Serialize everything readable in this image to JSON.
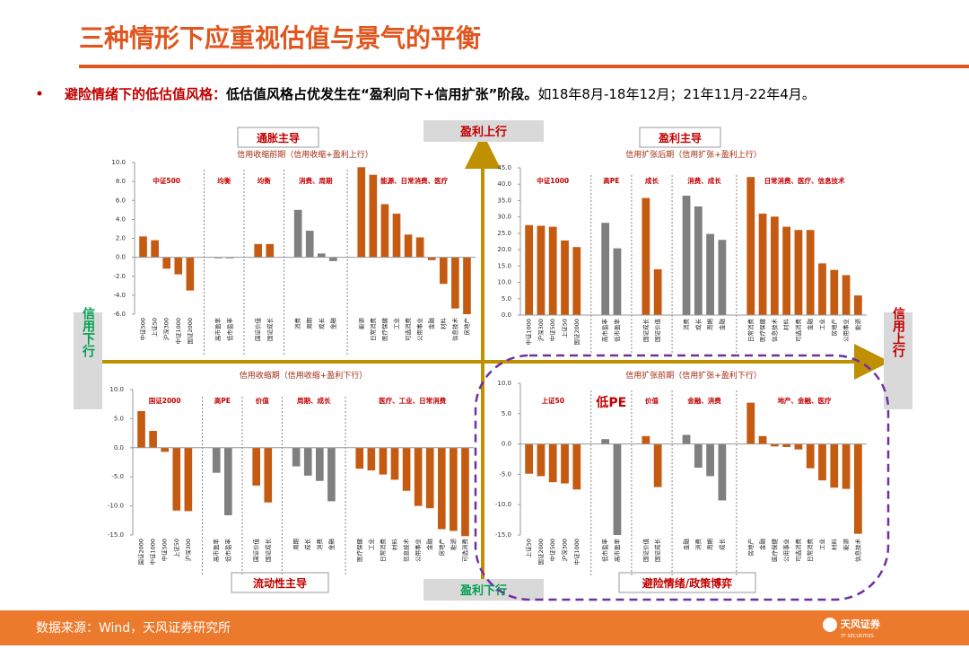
{
  "title": "三种情形下应重视估值与景气的平衡",
  "bullet": {
    "lead": "避险情绪下的低估值风格：",
    "bold": "低估值风格占优发生在“盈利向下+信用扩张”阶段。",
    "rest": "如18年8月-18年12月；21年11月-22年4月。"
  },
  "quadrants": {
    "top_left": "通胀主导",
    "top_right": "盈利主导",
    "bottom_left": "流动性主导",
    "bottom_right": "避险情绪/政策博弈"
  },
  "axes": {
    "up": "盈利上行",
    "down": "盈利下行",
    "left": "信用下行",
    "right": "信用上行"
  },
  "footer": {
    "source": "数据来源：Wind，天风证券研究所",
    "logo": "天风证券",
    "logo_sub": "TF SECURITIES"
  },
  "chart_data": [
    {
      "type": "bar",
      "subtitle": "信用收缩前期（信用收缩+盈利上行）",
      "ylim": [
        -6,
        10
      ],
      "yticks": [
        {
          "value": 10,
          "label": "10.0"
        },
        {
          "value": 8,
          "label": "8.0"
        },
        {
          "value": 6,
          "label": "6.0"
        },
        {
          "value": 4,
          "label": "4.0"
        },
        {
          "value": 2,
          "label": "2.0"
        },
        {
          "value": 0,
          "label": "0.0"
        },
        {
          "value": -2,
          "label": "-2.0"
        },
        {
          "value": -4,
          "label": "-4.0"
        },
        {
          "value": -6,
          "label": "-6.0"
        }
      ],
      "groups": [
        {
          "label": "中证500",
          "color": "#c55a11",
          "categories": [
            "中证500",
            "上证50",
            "沪深300",
            "中证1000",
            "国证2000"
          ],
          "values": [
            2.2,
            1.8,
            -1.2,
            -1.8,
            -3.5
          ]
        },
        {
          "label": "均衡",
          "color": "#7f7f7f",
          "categories": [
            "高市盈率",
            "低市盈率"
          ],
          "values": [
            -0.1,
            -0.1
          ]
        },
        {
          "label": "均衡",
          "color": "#c55a11",
          "categories": [
            "国证价值",
            "国证成长"
          ],
          "values": [
            1.4,
            1.4
          ]
        },
        {
          "label": "消费、周期",
          "color": "#7f7f7f",
          "categories": [
            "消费",
            "周期",
            "成长",
            "金融"
          ],
          "values": [
            5.0,
            2.8,
            0.4,
            -0.4
          ]
        },
        {
          "label": "能源、日常消费、医疗",
          "color": "#c55a11",
          "categories": [
            "能源",
            "日常消费",
            "医疗保健",
            "工业",
            "可选消费",
            "公用事业",
            "金融",
            "材料",
            "信息技术",
            "房地产"
          ],
          "values": [
            9.5,
            8.7,
            5.6,
            4.6,
            2.4,
            2.1,
            -0.3,
            -2.8,
            -5.4,
            -6.0
          ]
        }
      ]
    },
    {
      "type": "bar",
      "subtitle": "信用扩张后期（信用扩张+盈利上行）",
      "ylim": [
        0,
        45
      ],
      "yticks": [
        {
          "value": 45,
          "label": "45.0"
        },
        {
          "value": 40,
          "label": "40.0"
        },
        {
          "value": 35,
          "label": "35.0"
        },
        {
          "value": 30,
          "label": "30.0"
        },
        {
          "value": 25,
          "label": "25.0"
        },
        {
          "value": 20,
          "label": "20.0"
        },
        {
          "value": 15,
          "label": "15.0"
        },
        {
          "value": 10,
          "label": "10.0"
        },
        {
          "value": 5,
          "label": "5.0"
        },
        {
          "value": 0,
          "label": "0.0"
        }
      ],
      "groups": [
        {
          "label": "中证1000",
          "color": "#c55a11",
          "categories": [
            "中证1000",
            "沪深300",
            "中证500",
            "上证50",
            "国证2000"
          ],
          "values": [
            27.5,
            27.3,
            27.0,
            22.8,
            20.8
          ]
        },
        {
          "label": "高PE",
          "color": "#7f7f7f",
          "categories": [
            "高市盈率",
            "低市盈率"
          ],
          "values": [
            28.2,
            20.4
          ]
        },
        {
          "label": "成长",
          "color": "#c55a11",
          "categories": [
            "国证成长",
            "国证价值"
          ],
          "values": [
            35.8,
            14.0
          ]
        },
        {
          "label": "消费、成长",
          "color": "#7f7f7f",
          "categories": [
            "消费",
            "成长",
            "周期",
            "金融"
          ],
          "values": [
            36.5,
            33.2,
            24.8,
            23.0
          ]
        },
        {
          "label": "日常消费、医疗、信息技术",
          "color": "#c55a11",
          "categories": [
            "日常消费",
            "医疗保健",
            "信息技术",
            "材料",
            "可选消费",
            "金融",
            "工业",
            "房地产",
            "公用事业",
            "能源"
          ],
          "values": [
            42.2,
            31.0,
            30.1,
            27.0,
            26.0,
            26.0,
            15.8,
            13.8,
            12.2,
            6.0
          ]
        }
      ]
    },
    {
      "type": "bar",
      "subtitle": "信用收缩期（信用收缩+盈利下行）",
      "ylim": [
        -15,
        10
      ],
      "yticks": [
        {
          "value": 10,
          "label": "10.0"
        },
        {
          "value": 5,
          "label": "5.0"
        },
        {
          "value": 0,
          "label": "0.0"
        },
        {
          "value": -5,
          "label": "-5.0"
        },
        {
          "value": -10,
          "label": "-10.0"
        },
        {
          "value": -15,
          "label": "-15.0"
        }
      ],
      "groups": [
        {
          "label": "国证2000",
          "color": "#c55a11",
          "categories": [
            "国证2000",
            "中证1000",
            "中证500",
            "上证50",
            "沪深300"
          ],
          "values": [
            6.3,
            2.9,
            -0.7,
            -10.8,
            -10.9
          ]
        },
        {
          "label": "高PE",
          "color": "#7f7f7f",
          "categories": [
            "高市盈率",
            "低市盈率"
          ],
          "values": [
            -4.3,
            -11.6
          ]
        },
        {
          "label": "价值",
          "color": "#c55a11",
          "categories": [
            "国证价值",
            "国证成长"
          ],
          "values": [
            -6.5,
            -9.4
          ]
        },
        {
          "label": "周期、成长",
          "color": "#7f7f7f",
          "categories": [
            "周期",
            "成长",
            "消费",
            "金融"
          ],
          "values": [
            -3.2,
            -4.8,
            -5.7,
            -9.2
          ]
        },
        {
          "label": "医疗、工业、日常消费",
          "color": "#c55a11",
          "categories": [
            "医疗保健",
            "工业",
            "日常消费",
            "材料",
            "信息技术",
            "公用事业",
            "金融",
            "房地产",
            "能源",
            "可选消费"
          ],
          "values": [
            -3.6,
            -3.9,
            -4.6,
            -5.5,
            -7.4,
            -10.0,
            -10.4,
            -14.0,
            -14.3,
            -15.2
          ]
        }
      ]
    },
    {
      "type": "bar",
      "subtitle": "信用扩张前期（信用扩张+盈利下行）",
      "ylim": [
        -15,
        10
      ],
      "yticks": [
        {
          "value": 10,
          "label": "10.0"
        },
        {
          "value": 5,
          "label": "5.0"
        },
        {
          "value": 0,
          "label": "0.0"
        },
        {
          "value": -5,
          "label": "-5.0"
        },
        {
          "value": -10,
          "label": "-10.0"
        },
        {
          "value": -15,
          "label": "-15.0"
        }
      ],
      "groups": [
        {
          "label": "上证50",
          "color": "#c55a11",
          "categories": [
            "上证50",
            "国证2000",
            "中证500",
            "沪深300",
            "中证1000"
          ],
          "values": [
            -4.9,
            -5.3,
            -6.3,
            -6.5,
            -7.5
          ]
        },
        {
          "label": "低PE",
          "color": "#7f7f7f",
          "categories": [
            "低市盈率",
            "高市盈率"
          ],
          "values": [
            0.8,
            -15.0
          ]
        },
        {
          "label": "价值",
          "color": "#c55a11",
          "categories": [
            "国证价值",
            "国证成长"
          ],
          "values": [
            1.3,
            -7.1
          ]
        },
        {
          "label": "金融、消费",
          "color": "#7f7f7f",
          "categories": [
            "金融",
            "消费",
            "周期",
            "成长"
          ],
          "values": [
            1.5,
            -3.9,
            -5.3,
            -9.3
          ]
        },
        {
          "label": "地产、金融、医疗",
          "color": "#c55a11",
          "categories": [
            "房地产",
            "金融",
            "医疗保健",
            "公用事业",
            "可选消费",
            "日常消费",
            "工业",
            "材料",
            "能源",
            "信息技术"
          ],
          "values": [
            6.8,
            1.3,
            -0.4,
            -0.5,
            -0.9,
            -4.0,
            -6.0,
            -7.2,
            -7.4,
            -14.8
          ]
        }
      ]
    }
  ]
}
